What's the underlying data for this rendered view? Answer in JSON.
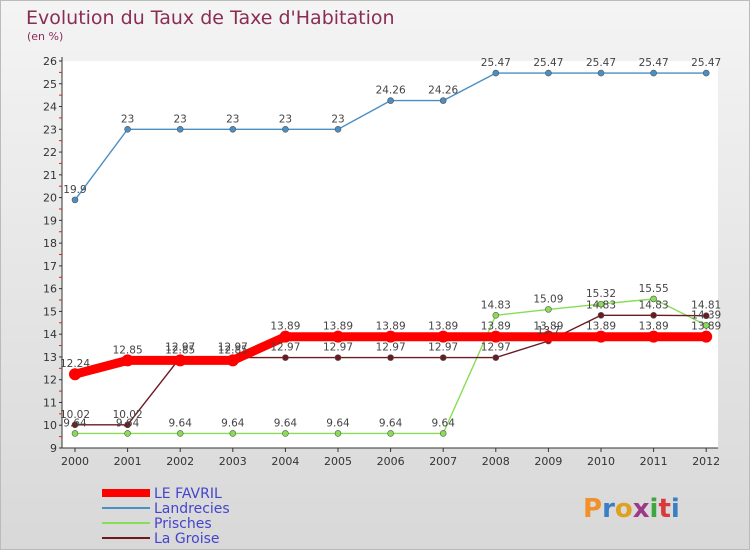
{
  "chart_data": {
    "type": "line",
    "title": "Evolution du Taux de Taxe d'Habitation",
    "subtitle": "(en %)",
    "xlabel": "",
    "ylabel": "",
    "x": [
      "2000",
      "2001",
      "2002",
      "2003",
      "2004",
      "2005",
      "2006",
      "2007",
      "2008",
      "2009",
      "2010",
      "2011",
      "2012"
    ],
    "ylim": [
      9,
      26
    ],
    "yticks": [
      "9",
      "10",
      "11",
      "12",
      "13",
      "14",
      "15",
      "16",
      "17",
      "18",
      "19",
      "20",
      "21",
      "22",
      "23",
      "24",
      "25",
      "26"
    ],
    "grid": false,
    "legend_position": "bottom-left",
    "series": [
      {
        "name": "LE FAVRIL",
        "color": "#ff0000",
        "values": [
          12.24,
          12.85,
          12.85,
          12.85,
          13.89,
          13.89,
          13.89,
          13.89,
          13.89,
          13.89,
          13.89,
          13.89,
          13.89
        ],
        "labels": [
          "12.24",
          "12.85",
          "12.85",
          "12.85",
          "13.89",
          "13.89",
          "13.89",
          "13.89",
          "13.89",
          "13.89",
          "13.89",
          "13.89",
          "13.89"
        ]
      },
      {
        "name": "Landrecies",
        "color": "#4a8fc4",
        "values": [
          19.9,
          23,
          23,
          23,
          23,
          23,
          24.26,
          24.26,
          25.47,
          25.47,
          25.47,
          25.47,
          25.47
        ],
        "labels": [
          "19.9",
          "23",
          "23",
          "23",
          "23",
          "23",
          "24.26",
          "24.26",
          "25.47",
          "25.47",
          "25.47",
          "25.47",
          "25.47"
        ]
      },
      {
        "name": "Prisches",
        "color": "#88dd55",
        "values": [
          9.64,
          9.64,
          9.64,
          9.64,
          9.64,
          9.64,
          9.64,
          9.64,
          14.83,
          15.09,
          15.32,
          15.55,
          14.39
        ],
        "labels": [
          "9.64",
          "9.64",
          "9.64",
          "9.64",
          "9.64",
          "9.64",
          "9.64",
          "9.64",
          "14.83",
          "15.09",
          "15.32",
          "15.55",
          "14.39"
        ]
      },
      {
        "name": "La Groise",
        "color": "#6b1a22",
        "values": [
          10.02,
          10.02,
          12.97,
          12.97,
          12.97,
          12.97,
          12.97,
          12.97,
          12.97,
          13.7,
          14.83,
          14.83,
          14.81
        ],
        "labels": [
          "10.02",
          "10.02",
          "12.97",
          "12.97",
          "12.97",
          "12.97",
          "12.97",
          "12.97",
          "12.97",
          "13.7",
          "14.83",
          "14.83",
          "14.81"
        ]
      }
    ]
  },
  "logo": {
    "text": "Proxiti",
    "colors": [
      "#f2902a",
      "#3a7fc4",
      "#e0a020",
      "#9c3a8a",
      "#3fa63f",
      "#d93a3a",
      "#3a7fc4"
    ]
  }
}
